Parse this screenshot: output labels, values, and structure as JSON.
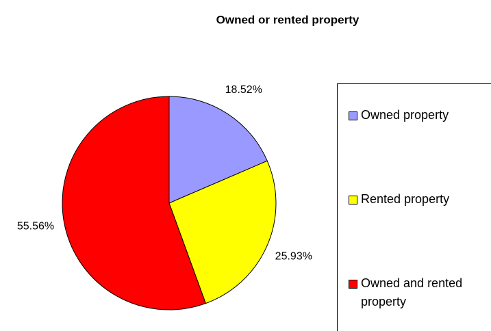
{
  "chart_data": {
    "type": "pie",
    "title": "Owned or rented property",
    "categories": [
      "Owned property",
      "Rented property",
      "Owned and rented property"
    ],
    "values": [
      18.52,
      25.93,
      55.56
    ],
    "value_labels": [
      "18.52%",
      "25.93%",
      "55.56%"
    ],
    "colors": [
      "#9999ff",
      "#ffff00",
      "#ff0000"
    ],
    "legend": "right"
  }
}
